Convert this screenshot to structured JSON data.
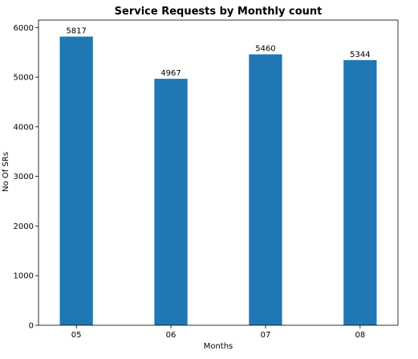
{
  "chart_data": {
    "type": "bar",
    "title": "Service Requests by Monthly count",
    "xlabel": "Months",
    "ylabel": "No Of SRs",
    "categories": [
      "05",
      "06",
      "07",
      "08"
    ],
    "values": [
      5817,
      4967,
      5460,
      5344
    ],
    "data_labels": [
      "5817",
      "4967",
      "5460",
      "5344"
    ],
    "ylim": [
      0,
      6150
    ],
    "yticks": [
      0,
      1000,
      2000,
      3000,
      4000,
      5000,
      6000
    ],
    "ytick_labels": [
      "0",
      "1000",
      "2000",
      "3000",
      "4000",
      "5000",
      "6000"
    ],
    "grid": false,
    "bar_color": "#1f77b4"
  }
}
